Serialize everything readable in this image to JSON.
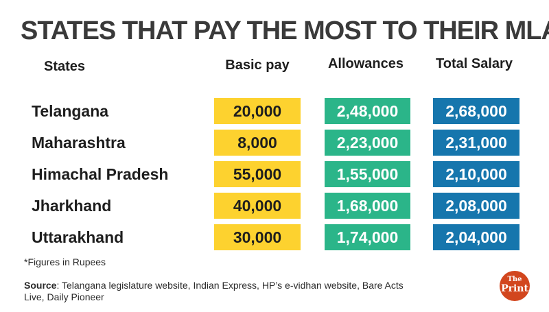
{
  "title": "STATES THAT PAY THE MOST TO THEIR MLAs",
  "headers": {
    "states": "States",
    "basic": "Basic pay",
    "allowances": "Allowances",
    "total": "Total Salary"
  },
  "colors": {
    "basic": "#fdd22f",
    "allowances": "#2bb589",
    "total": "#1676ad"
  },
  "chart_data": {
    "type": "table",
    "title": "STATES THAT PAY THE MOST TO THEIR MLAs",
    "columns": [
      "States",
      "Basic pay",
      "Allowances",
      "Total Salary"
    ],
    "rows": [
      {
        "state": "Telangana",
        "basic": "20,000",
        "allowances": "2,48,000",
        "total": "2,68,000"
      },
      {
        "state": "Maharashtra",
        "basic": "8,000",
        "allowances": "2,23,000",
        "total": "2,31,000"
      },
      {
        "state": "Himachal Pradesh",
        "basic": "55,000",
        "allowances": "1,55,000",
        "total": "2,10,000"
      },
      {
        "state": "Jharkhand",
        "basic": "40,000",
        "allowances": "1,68,000",
        "total": "2,08,000"
      },
      {
        "state": "Uttarakhand",
        "basic": "30,000",
        "allowances": "1,74,000",
        "total": "2,04,000"
      }
    ]
  },
  "note": "*Figures in Rupees",
  "source": {
    "label": "Source",
    "text": ": Telangana legislature website, Indian Express, HP’s e-vidhan website, Bare Acts Live, Daily Pioneer"
  },
  "logo": {
    "line1": "The",
    "line2": "Print"
  }
}
